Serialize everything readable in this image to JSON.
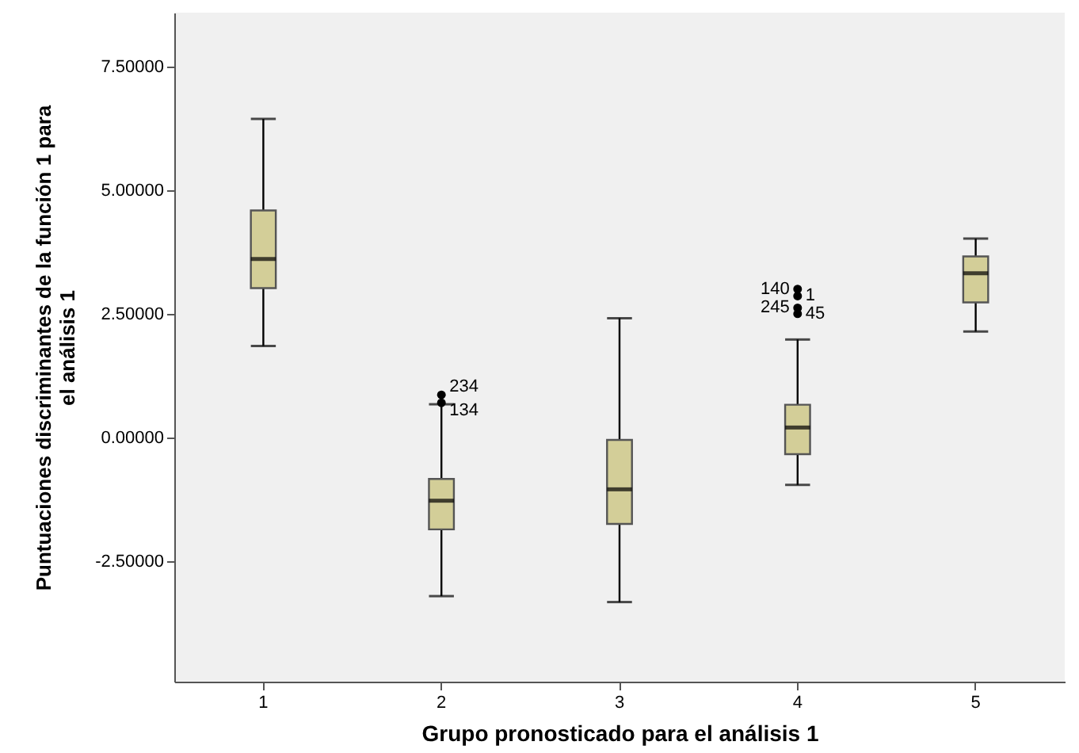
{
  "chart_data": {
    "type": "box",
    "xlabel": "Grupo pronosticado para el análisis 1",
    "ylabel": "Puntuaciones discriminantes de la función 1 para el análisis 1",
    "categories": [
      "1",
      "2",
      "3",
      "4",
      "5"
    ],
    "ylim": [
      -4.94,
      8.59
    ],
    "yticks": [
      {
        "value": -2.5,
        "label": "-2.50000"
      },
      {
        "value": 0,
        "label": "0.00000"
      },
      {
        "value": 2.5,
        "label": "2.50000"
      },
      {
        "value": 5,
        "label": "5.00000"
      },
      {
        "value": 7.5,
        "label": "7.50000"
      }
    ],
    "grid": false,
    "series": [
      {
        "color": "#d3ce98",
        "boxes": [
          {
            "low": 1.85,
            "q1": 3.02,
            "median": 3.61,
            "q3": 4.59,
            "high": 6.44
          },
          {
            "low": -3.21,
            "q1": -1.86,
            "median": -1.28,
            "q3": -0.84,
            "high": 0.67,
            "outliers": [
              0.86,
              0.7
            ]
          },
          {
            "low": -3.33,
            "q1": -1.75,
            "median": -1.05,
            "q3": -0.05,
            "high": 2.41
          },
          {
            "low": -0.96,
            "q1": -0.34,
            "median": 0.2,
            "q3": 0.66,
            "high": 1.98,
            "outliers": [
              3.0,
              2.86,
              2.62,
              2.5
            ]
          },
          {
            "low": 2.14,
            "q1": 2.73,
            "median": 3.32,
            "q3": 3.66,
            "high": 4.02
          }
        ]
      }
    ],
    "annotations": [
      {
        "text": "234",
        "x": "2",
        "y": 0.86
      },
      {
        "text": "134",
        "x": "2",
        "y": 0.7
      },
      "140",
      "1",
      "245",
      "45"
    ]
  }
}
